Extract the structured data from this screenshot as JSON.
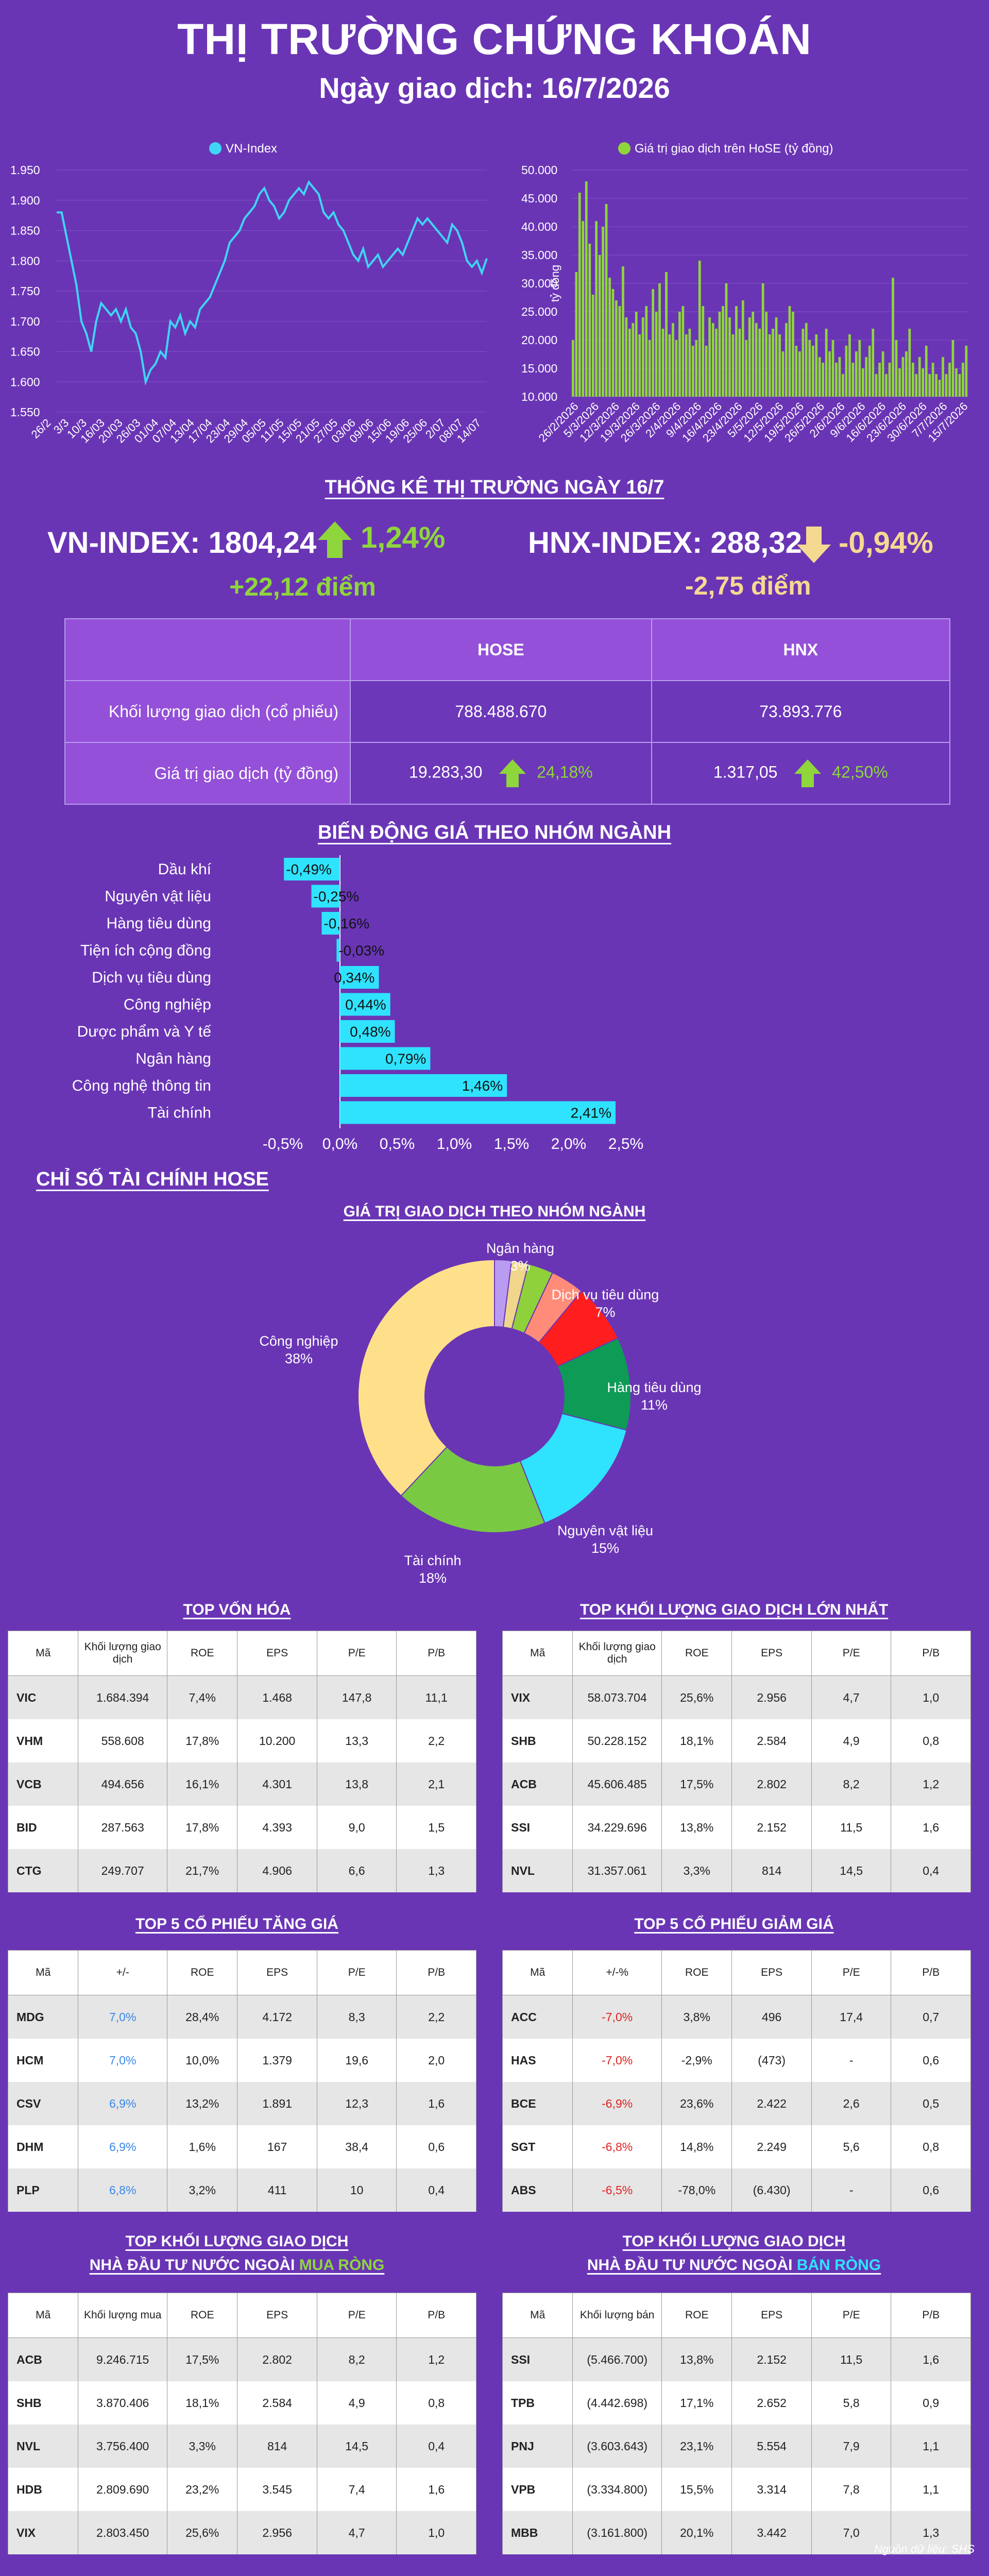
{
  "header": {
    "title": "THỊ TRƯỜNG CHỨNG KHOÁN",
    "subtitle": "Ngày giao dịch: 16/7/2026"
  },
  "colors": {
    "background": "#6a35b5",
    "vn_line": "#3fd5f5",
    "hose_bar": "#8fd63c",
    "up": "#8fd63c",
    "down": "#f6d991",
    "sector_bar": "#2fe3ff"
  },
  "chart_data": [
    {
      "type": "line",
      "title": "",
      "legend": "VN-Index",
      "legend_position": "top",
      "x_ticks": [
        "26/2",
        "3/3",
        "10/3",
        "16/03",
        "20/03",
        "26/03",
        "01/04",
        "07/04",
        "13/04",
        "17/04",
        "23/04",
        "29/04",
        "05/05",
        "11/05",
        "15/05",
        "21/05",
        "27/05",
        "03/06",
        "09/06",
        "15/06",
        "19/06",
        "25/06",
        "2/07",
        "08/07",
        "14/07"
      ],
      "y_ticks": [
        "1.550",
        "1.600",
        "1.650",
        "1.700",
        "1.750",
        "1.800",
        "1.850",
        "1.900",
        "1.950"
      ],
      "ylim": [
        1550,
        1950
      ],
      "y": [
        1880,
        1880,
        1840,
        1800,
        1760,
        1700,
        1680,
        1650,
        1700,
        1730,
        1720,
        1710,
        1720,
        1700,
        1720,
        1690,
        1680,
        1650,
        1600,
        1620,
        1630,
        1650,
        1640,
        1700,
        1690,
        1710,
        1680,
        1700,
        1690,
        1720,
        1730,
        1740,
        1760,
        1780,
        1800,
        1830,
        1840,
        1850,
        1870,
        1880,
        1890,
        1910,
        1920,
        1900,
        1890,
        1870,
        1880,
        1900,
        1910,
        1920,
        1910,
        1930,
        1920,
        1910,
        1880,
        1870,
        1880,
        1860,
        1850,
        1830,
        1810,
        1800,
        1820,
        1790,
        1800,
        1810,
        1790,
        1800,
        1810,
        1820,
        1810,
        1830,
        1850,
        1870,
        1860,
        1870,
        1860,
        1850,
        1840,
        1830,
        1860,
        1850,
        1830,
        1800,
        1790,
        1800,
        1780,
        1804
      ]
    },
    {
      "type": "bar",
      "title": "",
      "legend": "Giá trị giao dịch trên HoSE (tỷ đồng)",
      "legend_position": "top",
      "ylabel": "tỷ đồng",
      "x_ticks": [
        "26/2/2026",
        "5/3/2026",
        "12/3/2026",
        "19/3/2026",
        "26/3/2026",
        "2/4/2026",
        "9/4/2026",
        "16/4/2026",
        "23/4/2026",
        "5/5/2026",
        "12/5/2026",
        "19/5/2026",
        "26/5/2026",
        "2/6/2026",
        "9/6/2026",
        "16/6/2026",
        "23/6/2026",
        "30/6/2026",
        "7/7/2026",
        "15/7/2026"
      ],
      "y_ticks": [
        "10.000",
        "15.000",
        "20.000",
        "25.000",
        "30.000",
        "35.000",
        "40.000",
        "45.000",
        "50.000"
      ],
      "ylim": [
        10000,
        50000
      ],
      "values": [
        20000,
        32000,
        46000,
        41000,
        48000,
        37000,
        28000,
        41000,
        35000,
        40000,
        44000,
        31000,
        29000,
        27000,
        26000,
        33000,
        24000,
        22000,
        23000,
        25000,
        21000,
        24000,
        26000,
        20000,
        29000,
        25000,
        30000,
        22000,
        32000,
        21000,
        23000,
        20000,
        25000,
        26000,
        21000,
        22000,
        19000,
        20000,
        34000,
        26000,
        19000,
        24000,
        23000,
        22000,
        25000,
        26000,
        30000,
        24000,
        21000,
        26000,
        22000,
        27000,
        20000,
        24000,
        25000,
        23000,
        22000,
        30000,
        25000,
        21000,
        22000,
        24000,
        21000,
        18000,
        23000,
        26000,
        25000,
        19000,
        18000,
        22000,
        23000,
        20000,
        19000,
        21000,
        17000,
        16000,
        22000,
        18000,
        20000,
        16000,
        17000,
        14000,
        19000,
        21000,
        16000,
        18000,
        20000,
        15000,
        17000,
        19000,
        22000,
        14000,
        16000,
        18000,
        14000,
        16000,
        31000,
        20000,
        15000,
        17000,
        18000,
        22000,
        16000,
        14000,
        17000,
        15000,
        19000,
        14000,
        16000,
        14000,
        13000,
        17000,
        14000,
        16000,
        20000,
        15000,
        14000,
        16000,
        19000
      ]
    },
    {
      "type": "bar",
      "orientation": "horizontal",
      "title": "BIẾN ĐỘNG GIÁ THEO NHÓM NGÀNH",
      "categories": [
        "Dầu khí",
        "Nguyên vật liệu",
        "Hàng tiêu dùng",
        "Tiện ích cộng đồng",
        "Dịch vụ tiêu dùng",
        "Công nghiệp",
        "Dược phẩm và Y tế",
        "Ngân hàng",
        "Công nghệ thông tin",
        "Tài chính"
      ],
      "values": [
        -0.49,
        -0.25,
        -0.16,
        -0.03,
        0.34,
        0.44,
        0.48,
        0.79,
        1.46,
        2.41
      ],
      "labels": [
        "-0,49%",
        "-0,25%",
        "-0,16%",
        "-0,03%",
        "0,34%",
        "0,44%",
        "0,48%",
        "0,79%",
        "1,46%",
        "2,41%"
      ],
      "x_ticks": [
        "-0,5%",
        "0,0%",
        "0,5%",
        "1,0%",
        "1,5%",
        "2,0%",
        "2,5%"
      ],
      "xlim": [
        -0.5,
        2.5
      ]
    },
    {
      "type": "pie",
      "title": "GIÁ TRỊ GIAO DỊCH THEO NHÓM NGÀNH",
      "slices": [
        {
          "name": "Ngân hàng",
          "value": 3,
          "label": "Ngân hàng\n3%",
          "color": "#8ed13a"
        },
        {
          "name": "Dịch vụ tiêu dùng",
          "value": 7,
          "label": "Dịch vụ tiêu dùng\n7%",
          "color": "#ff1e1e"
        },
        {
          "name": "Hàng tiêu dùng",
          "value": 11,
          "label": "Hàng tiêu dùng\n11%",
          "color": "#0d9b55"
        },
        {
          "name": "Nguyên vật liệu",
          "value": 15,
          "label": "Nguyên vật liệu\n15%",
          "color": "#2fe3ff"
        },
        {
          "name": "Tài chính",
          "value": 18,
          "label": "Tài chính\n18%",
          "color": "#7ac943"
        },
        {
          "name": "Công nghiệp",
          "value": 38,
          "label": "Công nghiệp\n38%",
          "color": "#ffe08a"
        },
        {
          "name": "",
          "value": 2,
          "label": "",
          "color": "#b99cf1"
        },
        {
          "name": "",
          "value": 2,
          "label": "",
          "color": "#f0d68a"
        },
        {
          "name": "",
          "value": 4,
          "label": "",
          "color": "#ff8c79"
        }
      ]
    }
  ],
  "stats": {
    "title": "THỐNG KÊ THỊ TRƯỜNG NGÀY 16/7",
    "vn_index": "VN-INDEX: 1804,24",
    "vn_pct": "1,24%",
    "vn_pts": "+22,12 điểm",
    "hnx_index": "HNX-INDEX: 288,32",
    "hnx_pct": "-0,94%",
    "hnx_pts": "-2,75 điểm",
    "col_hose": "HOSE",
    "col_hnx": "HNX",
    "row1_label": "Khối lượng giao dịch (cổ phiếu)",
    "row1_hose": "788.488.670",
    "row1_hnx": "73.893.776",
    "row2_label": "Giá trị giao dịch (tỷ đồng)",
    "row2_hose": "19.283,30",
    "row2_hose_pct": "24,18%",
    "row2_hnx": "1.317,05",
    "row2_hnx_pct": "42,50%"
  },
  "fin": {
    "title": "CHỈ SỐ TÀI CHÍNH HOSE"
  },
  "tables": {
    "top_cap": {
      "title": "TOP VỐN HÓA",
      "headers": [
        "Mã",
        "Khối lượng giao dịch",
        "ROE",
        "EPS",
        "P/E",
        "P/B"
      ],
      "rows": [
        [
          "VIC",
          "1.684.394",
          "7,4%",
          "1.468",
          "147,8",
          "11,1"
        ],
        [
          "VHM",
          "558.608",
          "17,8%",
          "10.200",
          "13,3",
          "2,2"
        ],
        [
          "VCB",
          "494.656",
          "16,1%",
          "4.301",
          "13,8",
          "2,1"
        ],
        [
          "BID",
          "287.563",
          "17,8%",
          "4.393",
          "9,0",
          "1,5"
        ],
        [
          "CTG",
          "249.707",
          "21,7%",
          "4.906",
          "6,6",
          "1,3"
        ]
      ]
    },
    "top_volume": {
      "title": "TOP KHỐI LƯỢNG GIAO DỊCH LỚN NHẤT",
      "headers": [
        "Mã",
        "Khối lượng giao dịch",
        "ROE",
        "EPS",
        "P/E",
        "P/B"
      ],
      "rows": [
        [
          "VIX",
          "58.073.704",
          "25,6%",
          "2.956",
          "4,7",
          "1,0"
        ],
        [
          "SHB",
          "50.228.152",
          "18,1%",
          "2.584",
          "4,9",
          "0,8"
        ],
        [
          "ACB",
          "45.606.485",
          "17,5%",
          "2.802",
          "8,2",
          "1,2"
        ],
        [
          "SSI",
          "34.229.696",
          "13,8%",
          "2.152",
          "11,5",
          "1,6"
        ],
        [
          "NVL",
          "31.357.061",
          "3,3%",
          "814",
          "14,5",
          "0,4"
        ]
      ]
    },
    "top_gain": {
      "title": "TOP 5 CỔ PHIẾU TĂNG GIÁ",
      "headers": [
        "Mã",
        "+/-",
        "ROE",
        "EPS",
        "P/E",
        "P/B"
      ],
      "rows": [
        [
          "MDG",
          "7,0%",
          "28,4%",
          "4.172",
          "8,3",
          "2,2"
        ],
        [
          "HCM",
          "7,0%",
          "10,0%",
          "1.379",
          "19,6",
          "2,0"
        ],
        [
          "CSV",
          "6,9%",
          "13,2%",
          "1.891",
          "12,3",
          "1,6"
        ],
        [
          "DHM",
          "6,9%",
          "1,6%",
          "167",
          "38,4",
          "0,6"
        ],
        [
          "PLP",
          "6,8%",
          "3,2%",
          "411",
          "10",
          "0,4"
        ]
      ]
    },
    "top_loss": {
      "title": "TOP 5 CỔ PHIẾU GIẢM GIÁ",
      "headers": [
        "Mã",
        "+/-%",
        "ROE",
        "EPS",
        "P/E",
        "P/B"
      ],
      "rows": [
        [
          "ACC",
          "-7,0%",
          "3,8%",
          "496",
          "17,4",
          "0,7"
        ],
        [
          "HAS",
          "-7,0%",
          "-2,9%",
          "(473)",
          "-",
          "0,6"
        ],
        [
          "BCE",
          "-6,9%",
          "23,6%",
          "2.422",
          "2,6",
          "0,5"
        ],
        [
          "SGT",
          "-6,8%",
          "14,8%",
          "2.249",
          "5,6",
          "0,8"
        ],
        [
          "ABS",
          "-6,5%",
          "-78,0%",
          "(6.430)",
          "-",
          "0,6"
        ]
      ]
    },
    "foreign_buy": {
      "title1": "TOP KHỐI LƯỢNG GIAO DỊCH",
      "title2": "NHÀ ĐẦU TƯ NƯỚC NGOÀI",
      "title3": "MUA RÒNG",
      "headers": [
        "Mã",
        "Khối lượng mua",
        "ROE",
        "EPS",
        "P/E",
        "P/B"
      ],
      "rows": [
        [
          "ACB",
          "9.246.715",
          "17,5%",
          "2.802",
          "8,2",
          "1,2"
        ],
        [
          "SHB",
          "3.870.406",
          "18,1%",
          "2.584",
          "4,9",
          "0,8"
        ],
        [
          "NVL",
          "3.756.400",
          "3,3%",
          "814",
          "14,5",
          "0,4"
        ],
        [
          "HDB",
          "2.809.690",
          "23,2%",
          "3.545",
          "7,4",
          "1,6"
        ],
        [
          "VIX",
          "2.803.450",
          "25,6%",
          "2.956",
          "4,7",
          "1,0"
        ]
      ]
    },
    "foreign_sell": {
      "title1": "TOP KHỐI LƯỢNG GIAO DỊCH",
      "title2": "NHÀ ĐẦU TƯ NƯỚC NGOÀI",
      "title3": "BÁN RÒNG",
      "headers": [
        "Mã",
        "Khối lượng bán",
        "ROE",
        "EPS",
        "P/E",
        "P/B"
      ],
      "rows": [
        [
          "SSI",
          "(5.466.700)",
          "13,8%",
          "2.152",
          "11,5",
          "1,6"
        ],
        [
          "TPB",
          "(4.442.698)",
          "17,1%",
          "2.652",
          "5,8",
          "0,9"
        ],
        [
          "PNJ",
          "(3.603.643)",
          "23,1%",
          "5.554",
          "7,9",
          "1,1"
        ],
        [
          "VPB",
          "(3.334.800)",
          "15,5%",
          "3.314",
          "7,8",
          "1,1"
        ],
        [
          "MBB",
          "(3.161.800)",
          "20,1%",
          "3.442",
          "7,0",
          "1,3"
        ]
      ]
    }
  },
  "source": "Nguồn dữ liệu: SHS"
}
